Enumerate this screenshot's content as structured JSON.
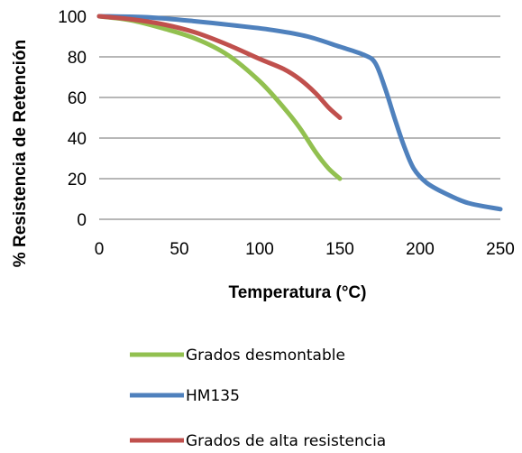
{
  "chart_data": {
    "type": "line",
    "xlabel": "Temperatura (°C)",
    "ylabel": "% Resistencia de Retención",
    "xlim": [
      0,
      250
    ],
    "ylim": [
      0,
      100
    ],
    "xticks": [
      "0",
      "50",
      "100",
      "150",
      "200",
      "250"
    ],
    "yticks": [
      "0",
      "20",
      "40",
      "60",
      "80",
      "100"
    ],
    "grid": "horizontal",
    "legend_position": "bottom",
    "series": [
      {
        "name": "Grados desmontable",
        "color": "#92c050",
        "points": [
          [
            0,
            100
          ],
          [
            20,
            98
          ],
          [
            40,
            94
          ],
          [
            60,
            89
          ],
          [
            80,
            81
          ],
          [
            100,
            68
          ],
          [
            115,
            55
          ],
          [
            125,
            45
          ],
          [
            135,
            33
          ],
          [
            143,
            25
          ],
          [
            150,
            20
          ]
        ]
      },
      {
        "name": "HM135",
        "color": "#4f81bd",
        "points": [
          [
            0,
            100
          ],
          [
            30,
            99.5
          ],
          [
            60,
            97.5
          ],
          [
            90,
            95
          ],
          [
            110,
            93
          ],
          [
            130,
            90
          ],
          [
            150,
            85
          ],
          [
            165,
            81
          ],
          [
            172,
            77
          ],
          [
            178,
            65
          ],
          [
            184,
            50
          ],
          [
            190,
            36
          ],
          [
            196,
            25
          ],
          [
            204,
            18
          ],
          [
            215,
            13
          ],
          [
            230,
            8
          ],
          [
            250,
            5
          ]
        ]
      },
      {
        "name": "Grados de alta resistencia",
        "color": "#c0504d",
        "points": [
          [
            0,
            100
          ],
          [
            20,
            98.5
          ],
          [
            40,
            96
          ],
          [
            60,
            92
          ],
          [
            80,
            86
          ],
          [
            100,
            79
          ],
          [
            115,
            74
          ],
          [
            125,
            69
          ],
          [
            135,
            62
          ],
          [
            143,
            55
          ],
          [
            150,
            50
          ]
        ]
      }
    ]
  }
}
